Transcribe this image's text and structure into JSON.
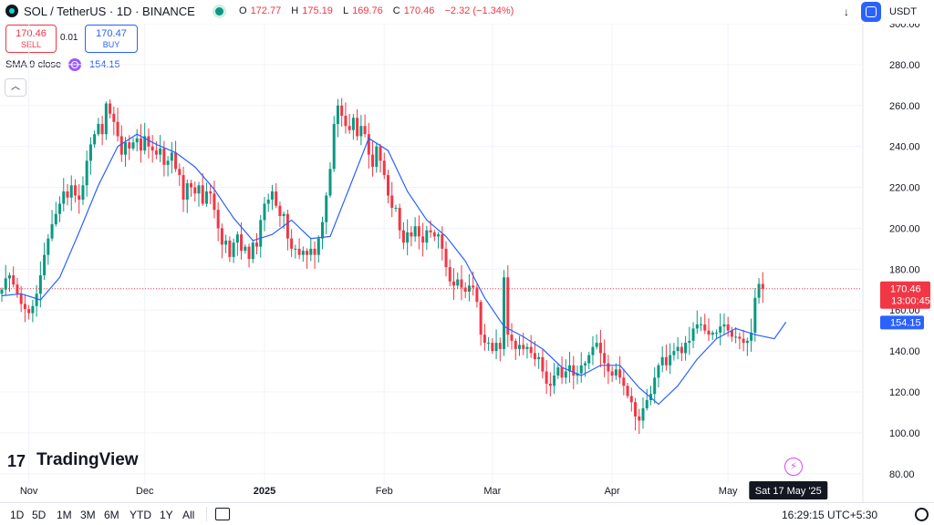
{
  "header": {
    "title": "SOL / TetherUS · 1D · BINANCE",
    "ohlc": [
      {
        "k": "O",
        "v": "172.77"
      },
      {
        "k": "H",
        "v": "175.19"
      },
      {
        "k": "L",
        "v": "169.76"
      },
      {
        "k": "C",
        "v": "170.46"
      }
    ],
    "change": "−2.32 (−1.34%)",
    "currency": "USDT"
  },
  "trade": {
    "sell_price": "170.46",
    "sell_label": "SELL",
    "spread": "0.01",
    "buy_price": "170.47",
    "buy_label": "BUY"
  },
  "indicator": {
    "label": "SMA 9 close",
    "value": "154.15"
  },
  "branding": {
    "name": "TradingView",
    "mark": "17"
  },
  "bottom": {
    "ranges": [
      "1D",
      "5D",
      "1M",
      "3M",
      "6M",
      "YTD",
      "1Y",
      "All"
    ],
    "clock": "16:29:15 UTC+5:30"
  },
  "colors": {
    "up": "#089981",
    "down": "#f23645",
    "sma": "#2962ff",
    "grid": "#f0f3fa"
  },
  "chart_data": {
    "type": "candlestick",
    "title": "SOL / TetherUS · 1D · BINANCE",
    "ylim": [
      75,
      300
    ],
    "y_ticks": [
      "300.00",
      "280.00",
      "260.00",
      "240.00",
      "220.00",
      "200.00",
      "180.00",
      "160.00",
      "140.00",
      "120.00",
      "100.00",
      "80.00"
    ],
    "x_ticks": [
      {
        "label": "Nov",
        "i": 7
      },
      {
        "label": "Dec",
        "i": 37
      },
      {
        "label": "2025",
        "i": 68
      },
      {
        "label": "Feb",
        "i": 99
      },
      {
        "label": "Mar",
        "i": 127
      },
      {
        "label": "Apr",
        "i": 158
      },
      {
        "label": "May",
        "i": 188
      }
    ],
    "last_price": "170.46",
    "countdown": "13:00:45",
    "sma_value": "154.15",
    "crosshair_date": "Sat 17 May '25",
    "close": [
      170.0,
      175.5,
      177.0,
      172.5,
      168.0,
      163.0,
      160.5,
      158.5,
      162.0,
      168.0,
      177.0,
      187.0,
      195.0,
      202.0,
      207.0,
      212.0,
      218.0,
      215.0,
      221.0,
      216.0,
      214.0,
      221.0,
      233.0,
      241.0,
      246.0,
      251.0,
      246.0,
      261.0,
      256.0,
      252.0,
      245.0,
      236.0,
      242.0,
      239.0,
      242.0,
      244.0,
      238.0,
      245.0,
      240.0,
      238.0,
      236.0,
      239.0,
      231.0,
      233.0,
      237.0,
      229.0,
      226.0,
      214.0,
      222.0,
      220.0,
      217.0,
      221.0,
      212.0,
      218.0,
      217.0,
      209.0,
      200.0,
      192.0,
      194.0,
      186.0,
      193.0,
      197.0,
      189.0,
      191.0,
      185.0,
      193.0,
      191.0,
      204.0,
      212.0,
      214.0,
      218.0,
      211.0,
      206.0,
      207.0,
      195.0,
      190.0,
      190.0,
      187.0,
      189.0,
      187.0,
      190.0,
      187.0,
      195.0,
      203.0,
      216.0,
      229.0,
      251.0,
      260.0,
      255.0,
      250.0,
      248.0,
      254.0,
      245.0,
      250.0,
      246.0,
      236.0,
      230.0,
      240.0,
      233.0,
      226.0,
      216.0,
      210.0,
      210.0,
      199.0,
      193.0,
      198.0,
      196.0,
      201.0,
      196.0,
      193.0,
      199.0,
      198.0,
      196.0,
      197.0,
      190.0,
      181.0,
      174.0,
      172.0,
      175.0,
      171.0,
      169.0,
      172.0,
      171.0,
      164.0,
      148.0,
      144.0,
      144.0,
      140.0,
      144.0,
      141.0,
      176.0,
      148.0,
      145.0,
      141.0,
      143.0,
      141.0,
      142.0,
      139.0,
      136.0,
      137.0,
      130.0,
      124.0,
      123.0,
      128.0,
      132.0,
      127.0,
      130.0,
      133.0,
      128.0,
      129.0,
      133.0,
      134.0,
      138.0,
      142.0,
      144.0,
      139.0,
      134.0,
      130.0,
      128.0,
      131.0,
      127.0,
      123.0,
      118.0,
      115.0,
      108.0,
      106.0,
      112.0,
      116.0,
      119.0,
      127.0,
      133.0,
      137.0,
      133.0,
      138.0,
      140.0,
      142.0,
      139.0,
      144.0,
      145.0,
      151.0,
      153.0,
      153.0,
      150.0,
      148.0,
      149.0,
      149.0,
      152.0,
      153.0,
      150.0,
      147.0,
      147.0,
      146.0,
      144.0,
      145.0,
      149.0,
      166.0,
      172.8,
      170.5
    ],
    "sma": [
      [
        0,
        167.0
      ],
      [
        5,
        168.0
      ],
      [
        10,
        165.0
      ],
      [
        15,
        176.0
      ],
      [
        20,
        198.0
      ],
      [
        25,
        221.0
      ],
      [
        30,
        240.0
      ],
      [
        35,
        246.0
      ],
      [
        40,
        241.0
      ],
      [
        45,
        237.0
      ],
      [
        50,
        230.0
      ],
      [
        55,
        219.0
      ],
      [
        60,
        205.0
      ],
      [
        65,
        194.0
      ],
      [
        70,
        197.0
      ],
      [
        75,
        204.0
      ],
      [
        80,
        195.0
      ],
      [
        85,
        196.0
      ],
      [
        90,
        220.0
      ],
      [
        95,
        244.0
      ],
      [
        100,
        238.0
      ],
      [
        105,
        218.0
      ],
      [
        110,
        204.0
      ],
      [
        115,
        196.0
      ],
      [
        120,
        184.0
      ],
      [
        125,
        166.0
      ],
      [
        130,
        152.0
      ],
      [
        135,
        147.0
      ],
      [
        140,
        141.0
      ],
      [
        145,
        132.0
      ],
      [
        150,
        128.0
      ],
      [
        155,
        133.0
      ],
      [
        160,
        133.0
      ],
      [
        165,
        122.0
      ],
      [
        170,
        114.0
      ],
      [
        175,
        123.0
      ],
      [
        180,
        136.0
      ],
      [
        185,
        146.0
      ],
      [
        190,
        151.0
      ],
      [
        195,
        148.0
      ],
      [
        200,
        146.0
      ],
      [
        203,
        154.15
      ]
    ]
  }
}
